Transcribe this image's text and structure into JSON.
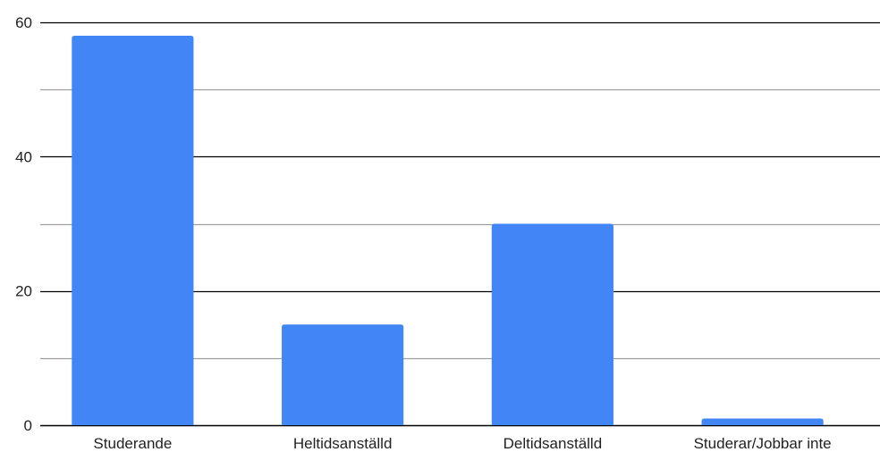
{
  "chart_data": {
    "type": "bar",
    "categories": [
      "Studerande",
      "Heltidsanställd",
      "Deltidsanställd",
      "Studerar/Jobbar inte"
    ],
    "series": [
      {
        "values": [
          58,
          15,
          30,
          1
        ]
      }
    ],
    "yticks": [
      "0",
      "20",
      "40",
      "60"
    ],
    "ytick_values": [
      0,
      20,
      40,
      60
    ],
    "minor_gridlines": [
      10,
      30,
      50
    ],
    "ylim": [
      0,
      60
    ],
    "title": "",
    "xlabel": "",
    "ylabel": "",
    "grid": true,
    "colors": {
      "bar": "#4285f4",
      "major_grid": "#000000",
      "minor_grid": "#9e9e9e"
    }
  }
}
